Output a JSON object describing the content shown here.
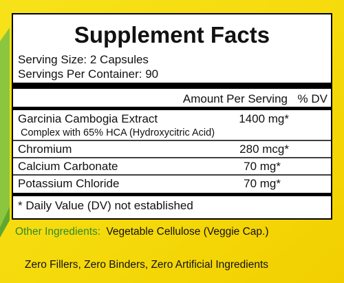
{
  "header": {
    "title": "Supplement Facts",
    "serving_size": "Serving Size: 2 Capsules",
    "servings_per_container": "Servings Per Container: 90"
  },
  "table": {
    "columns": [
      "Amount Per Serving",
      "% DV"
    ],
    "rows": [
      {
        "name": "Garcinia Cambogia Extract",
        "amount": "1400 mg*",
        "note": "Complex with 65% HCA (Hydroxycitric Acid)"
      },
      {
        "name": "Chromium",
        "amount": "280 mcg*"
      },
      {
        "name": "Calcium Carbonate",
        "amount": "70 mg*"
      },
      {
        "name": "Potassium Chloride",
        "amount": "70 mg*"
      }
    ]
  },
  "footnote": "* Daily Value (DV) not established",
  "other_ingredients": {
    "label": "Other Ingredients:",
    "text": "Vegetable Cellulose (Veggie Cap.)"
  },
  "tagline": "Zero Fillers, Zero Binders, Zero Artificial Ingredients"
}
